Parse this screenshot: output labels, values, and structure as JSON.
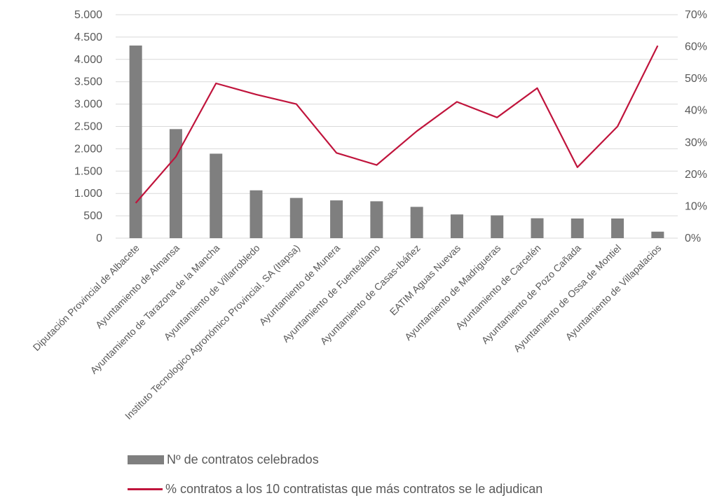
{
  "chart_data": {
    "type": "bar+line",
    "categories": [
      "Diputación Provincial de Albacete",
      "Ayuntamiento de Almansa",
      "Ayuntamiento de Tarazona de la Mancha",
      "Ayuntamiento de Villarrobledo",
      "Instituto Tecnologico Agronómico Provincial, SA (Itapsa)",
      "Ayuntamiento de Munera",
      "Ayuntamiento de Fuenteálamo",
      "Ayuntamiento de Casas-Ibáñez",
      "EATIM Aguas Nuevas",
      "Ayuntamiento de Madrigueras",
      "Ayuntamiento de Carcelén",
      "Ayuntamiento de Pozo Cañada",
      "Ayuntamiento de Ossa de Montiel",
      "Ayuntamiento de Villapalacios"
    ],
    "series": [
      {
        "name": "Nº de contratos celebrados",
        "type": "bar",
        "axis": "left",
        "color": "#7f7f7f",
        "values": [
          4310,
          2440,
          1890,
          1070,
          900,
          845,
          825,
          700,
          530,
          510,
          445,
          440,
          440,
          145
        ]
      },
      {
        "name": "% contratos a los 10 contratistas que más contratos se le adjudican",
        "type": "line",
        "axis": "right",
        "color": "#c0143c",
        "values": [
          11,
          25.5,
          48.5,
          45,
          42,
          26.7,
          22.9,
          33.5,
          42.7,
          37.8,
          47,
          22.2,
          35,
          60.3
        ]
      }
    ],
    "y_left": {
      "ylim": [
        0,
        5000
      ],
      "ticks": [
        0,
        500,
        1000,
        1500,
        2000,
        2500,
        3000,
        3500,
        4000,
        4500,
        5000
      ],
      "tick_labels": [
        "0",
        "500",
        "1.000",
        "1.500",
        "2.000",
        "2.500",
        "3.000",
        "3.500",
        "4.000",
        "4.500",
        "5.000"
      ]
    },
    "y_right": {
      "ylim": [
        0,
        70
      ],
      "ticks": [
        0,
        10,
        20,
        30,
        40,
        50,
        60,
        70
      ],
      "tick_labels": [
        "0%",
        "10%",
        "20%",
        "30%",
        "40%",
        "50%",
        "60%",
        "70%"
      ]
    },
    "grid": true,
    "legend_position": "bottom"
  },
  "legend": {
    "bar_label": "Nº de contratos celebrados",
    "line_label": "% contratos a los 10 contratistas que más contratos se le adjudican"
  }
}
